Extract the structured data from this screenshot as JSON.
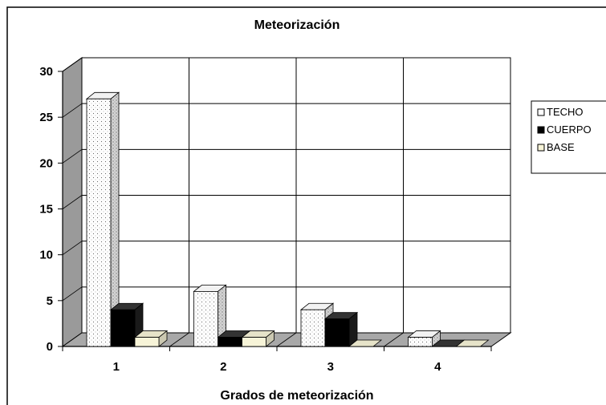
{
  "chart_data": {
    "type": "bar",
    "title": "Meteorización",
    "xlabel": "Grados de meteorización",
    "ylabel": "",
    "categories": [
      "1",
      "2",
      "3",
      "4"
    ],
    "ylim": [
      0,
      30
    ],
    "yticks": [
      "0",
      "5",
      "10",
      "15",
      "20",
      "25",
      "30"
    ],
    "grid": true,
    "legend_position": "right",
    "series": [
      {
        "name": "TECHO",
        "values": [
          27,
          6,
          4,
          1
        ],
        "color": "#ffffff",
        "pattern": "dots"
      },
      {
        "name": "CUERPO",
        "values": [
          4,
          1,
          3,
          0
        ],
        "color": "#000000",
        "pattern": "solid"
      },
      {
        "name": "BASE",
        "values": [
          1,
          1,
          0,
          0
        ],
        "color": "#f7f4d8",
        "pattern": "solid"
      }
    ]
  }
}
